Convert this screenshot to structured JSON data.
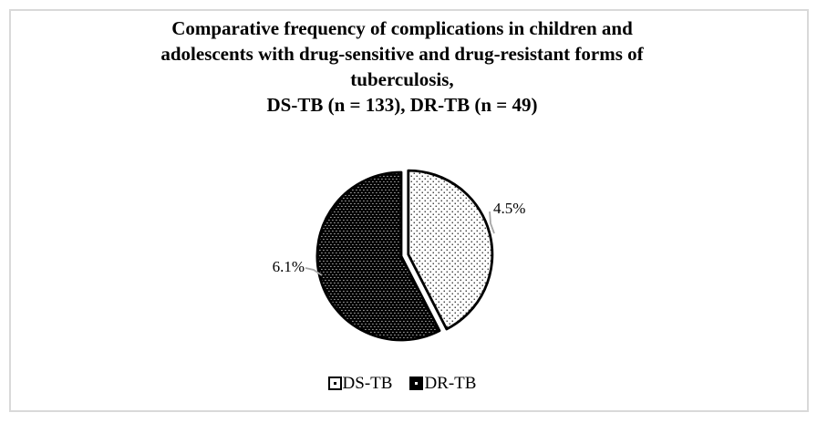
{
  "frame": {
    "border_color": "#d9d9d9",
    "background": "#ffffff"
  },
  "title": {
    "lines": [
      "Comparative frequency of complications in children and",
      "adolescents with drug-sensitive and drug-resistant forms of",
      "tuberculosis,",
      "DS-TB (n = 133), DR-TB (n = 49)"
    ]
  },
  "chart_data": {
    "type": "pie",
    "title": "Comparative frequency of complications in children and adolescents with drug-sensitive and drug-resistant forms of tuberculosis, DS-TB (n = 133), DR-TB (n = 49)",
    "categories": [
      "DS-TB",
      "DR-TB"
    ],
    "values": [
      4.5,
      6.1
    ],
    "data_labels": [
      "4.5%",
      "6.1%"
    ],
    "group_sizes": {
      "DS-TB": 133,
      "DR-TB": 49
    },
    "slice_fractions_of_circle": [
      0.425,
      0.575
    ],
    "start_angle_deg": 0,
    "direction": "clockwise",
    "exploded_slice": "DS-TB",
    "legend_position": "bottom",
    "slice_styles": [
      {
        "name": "DS-TB",
        "fill": "#ffffff",
        "pattern": "small-black-dots",
        "stroke": "#000000"
      },
      {
        "name": "DR-TB",
        "fill": "#000000",
        "pattern": "small-white-dots",
        "stroke": "#000000"
      }
    ],
    "leader_line_color": "#a6a6a6"
  },
  "legend": {
    "items": [
      {
        "label": "DS-TB",
        "swatch": "white-dotted"
      },
      {
        "label": "DR-TB",
        "swatch": "black-dotted"
      }
    ]
  },
  "colors": {
    "text": "#000000",
    "leader_line": "#a6a6a6",
    "frame_border": "#d9d9d9"
  }
}
